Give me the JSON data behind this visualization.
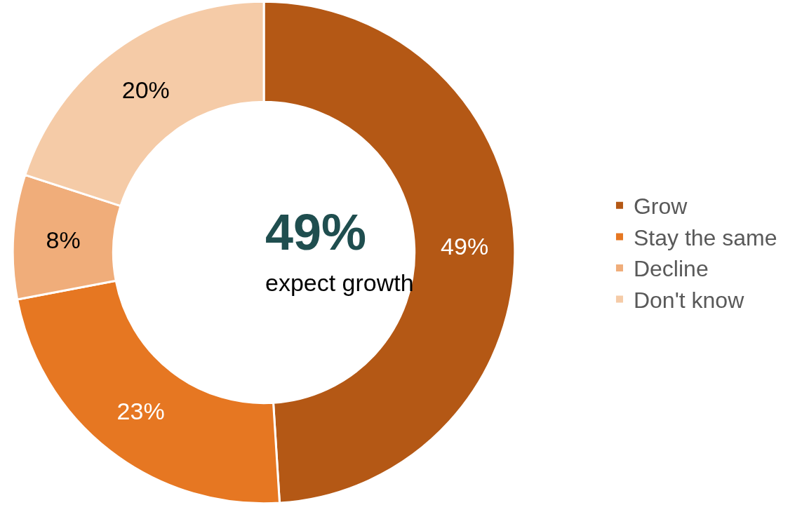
{
  "chart_data": {
    "type": "donut",
    "categories": [
      "Grow",
      "Stay the same",
      "Decline",
      "Don't know"
    ],
    "values": [
      49,
      23,
      8,
      20
    ],
    "value_labels": [
      "49%",
      "23%",
      "8%",
      "20%"
    ],
    "colors": [
      "#b45815",
      "#e67722",
      "#f0ad7a",
      "#f5cba7"
    ],
    "annotations": [
      "49%",
      "expect growth"
    ],
    "legend": "right"
  }
}
